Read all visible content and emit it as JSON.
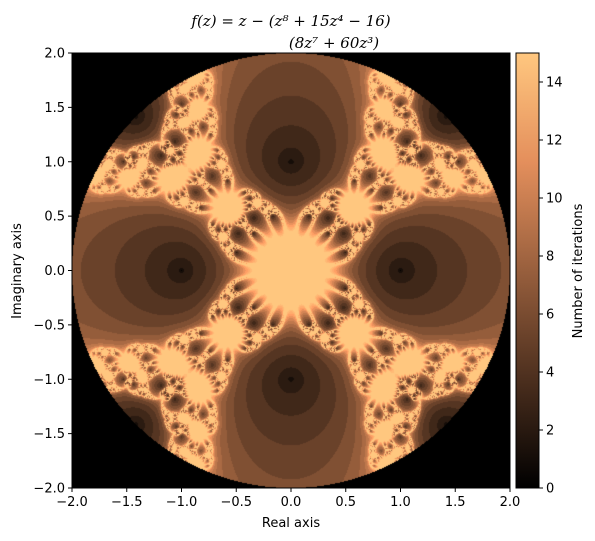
{
  "chart_data": {
    "type": "heatmap",
    "title_parts": {
      "lhs": "f(z) = z −",
      "numerator": "(z⁸ + 15z⁴ − 16)",
      "denominator": "(8z⁷ + 60z³)"
    },
    "xlabel": "Real axis",
    "ylabel": "Imaginary axis",
    "xlim": [
      -2.0,
      2.0
    ],
    "ylim": [
      -2.0,
      2.0
    ],
    "xticks": [
      "−2.0",
      "−1.5",
      "−1.0",
      "−0.5",
      "0.0",
      "0.5",
      "1.0",
      "1.5",
      "2.0"
    ],
    "yticks": [
      "−2.0",
      "−1.5",
      "−1.0",
      "−0.5",
      "0.0",
      "0.5",
      "1.0",
      "1.5",
      "2.0"
    ],
    "xtick_values": [
      -2.0,
      -1.5,
      -1.0,
      -0.5,
      0.0,
      0.5,
      1.0,
      1.5,
      2.0
    ],
    "ytick_values": [
      -2.0,
      -1.5,
      -1.0,
      -0.5,
      0.0,
      0.5,
      1.0,
      1.5,
      2.0
    ],
    "colorbar": {
      "label": "Number of iterations",
      "range": [
        0,
        15
      ],
      "ticks": [
        "0",
        "2",
        "4",
        "6",
        "8",
        "10",
        "12",
        "14"
      ],
      "tick_values": [
        0,
        2,
        4,
        6,
        8,
        10,
        12,
        14
      ],
      "colormap": "copper"
    },
    "max_iterations": 15,
    "domain_radius": 2.0,
    "grid": false
  },
  "colors": {
    "background": "#000000",
    "cmap_low": "#000000",
    "cmap_high": "#ffc77f"
  }
}
